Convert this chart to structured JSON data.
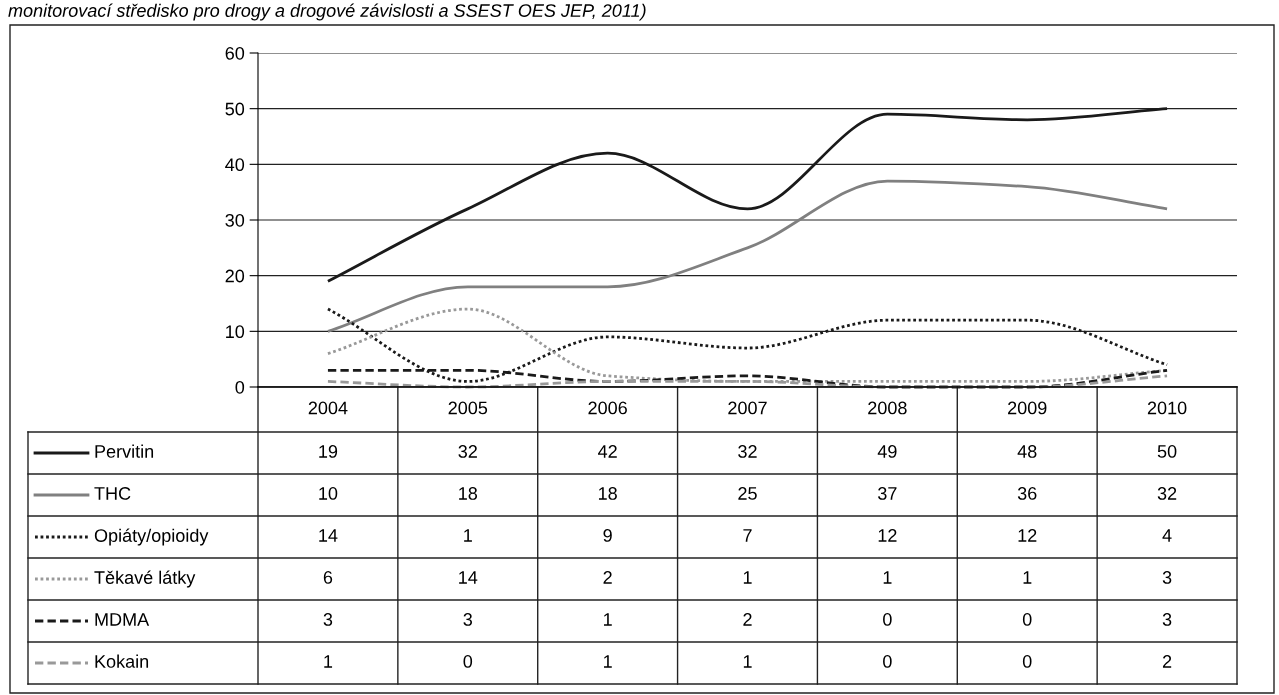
{
  "chart_data": {
    "type": "line",
    "annotations": [
      "monitorovací středisko pro drogy a drogové závislosti a SSEST OES JEP, 2011)"
    ],
    "categories": [
      "2004",
      "2005",
      "2006",
      "2007",
      "2008",
      "2009",
      "2010"
    ],
    "series": [
      {
        "name": "Pervitin",
        "color": "#1a1a1a",
        "line_style": "solid",
        "values": [
          19,
          32,
          42,
          32,
          49,
          48,
          50
        ]
      },
      {
        "name": "THC",
        "color": "#808080",
        "line_style": "solid",
        "values": [
          10,
          18,
          18,
          25,
          37,
          36,
          32
        ]
      },
      {
        "name": "Opiáty/opioidy",
        "color": "#1a1a1a",
        "line_style": "dotted",
        "values": [
          14,
          1,
          9,
          7,
          12,
          12,
          4
        ]
      },
      {
        "name": "Těkavé látky",
        "color": "#999999",
        "line_style": "dotted",
        "values": [
          6,
          14,
          2,
          1,
          1,
          1,
          3
        ]
      },
      {
        "name": "MDMA",
        "color": "#1a1a1a",
        "line_style": "dashed",
        "values": [
          3,
          3,
          1,
          2,
          0,
          0,
          3
        ]
      },
      {
        "name": "Kokain",
        "color": "#999999",
        "line_style": "dashed",
        "values": [
          1,
          0,
          1,
          1,
          0,
          0,
          2
        ]
      }
    ],
    "ylim": [
      0,
      60
    ],
    "yticks": [
      0,
      10,
      20,
      30,
      40,
      50,
      60
    ],
    "grid": "y",
    "legend": "bottom",
    "data_labels": true,
    "marker": "none"
  }
}
